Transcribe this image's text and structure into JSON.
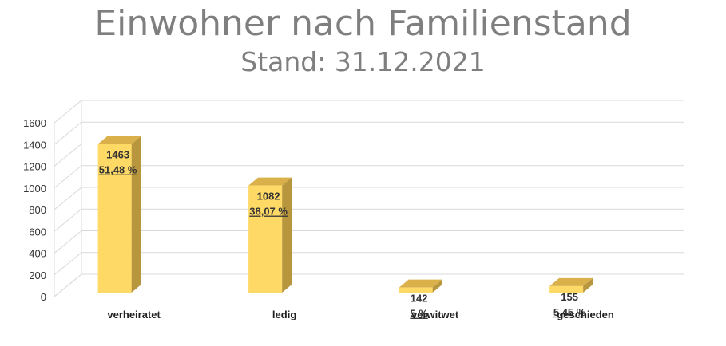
{
  "chart_data": {
    "type": "bar",
    "title": "Einwohner nach Familienstand",
    "subtitle": "Stand: 31.12.2021",
    "categories": [
      "verheiratet",
      "ledig",
      "verwitwet",
      "geschieden"
    ],
    "values": [
      1463,
      1082,
      142,
      155
    ],
    "value_labels": [
      "1463",
      "1082",
      "142",
      "155"
    ],
    "percent_labels": [
      "51,48 %",
      "38,07 %",
      "5 %",
      "5,45 %"
    ],
    "ylim": [
      0,
      1600
    ],
    "yticks": [
      0,
      200,
      400,
      600,
      800,
      1000,
      1200,
      1400,
      1600
    ],
    "grid": true,
    "bar_colors": {
      "front": "#FFD966",
      "side": "#B8963D",
      "top": "#D9B04A"
    }
  }
}
